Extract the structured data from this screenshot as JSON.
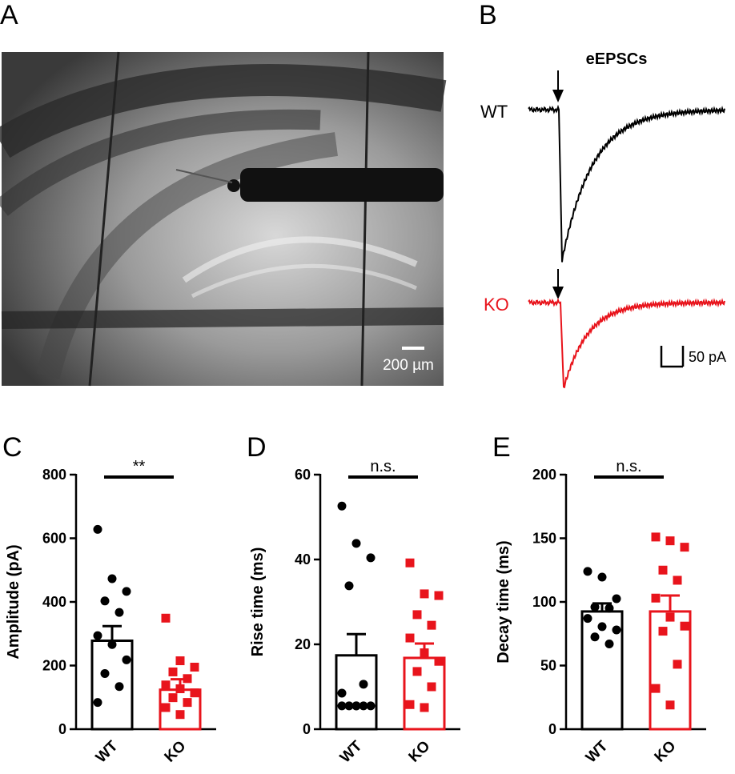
{
  "panel_a": {
    "label": "A",
    "scale_bar": "200 µm"
  },
  "panel_b": {
    "label": "B",
    "title": "eEPSCs",
    "traces": [
      "WT",
      "KO"
    ],
    "scale_bar": "50 pA"
  },
  "chart_data": [
    {
      "type": "bar",
      "panel_label": "C",
      "ylabel": "Amplitude (pA)",
      "annotation": "**",
      "categories": [
        "WT",
        "KO"
      ],
      "colors": [
        "#000000",
        "#e8141c"
      ],
      "values": [
        278,
        124
      ],
      "errors": [
        46,
        33
      ],
      "points": [
        [
          628,
          473,
          433,
          403,
          367,
          294,
          266,
          218,
          175,
          134,
          84
        ],
        [
          349,
          215,
          195,
          180,
          159,
          139,
          127,
          114,
          99,
          84,
          68,
          46
        ]
      ],
      "ylim": [
        0,
        800
      ],
      "yticks": [
        0,
        200,
        400,
        600,
        800
      ]
    },
    {
      "type": "bar",
      "panel_label": "D",
      "ylabel": "Rise time (ms)",
      "annotation": "n.s.",
      "categories": [
        "WT",
        "KO"
      ],
      "colors": [
        "#000000",
        "#e8141c"
      ],
      "values": [
        17.4,
        16.8
      ],
      "errors": [
        5,
        3.4
      ],
      "points": [
        [
          52.6,
          43.8,
          40.4,
          33.8,
          10.6,
          8.5,
          5.5,
          5.5,
          5.5,
          5.5,
          5.5,
          5.5
        ],
        [
          39.2,
          31.9,
          31.5,
          27,
          24.5,
          21.5,
          18,
          16,
          13.6,
          10,
          5.8,
          5.1
        ]
      ],
      "ylim": [
        0,
        60
      ],
      "yticks": [
        0,
        20,
        40,
        60
      ]
    },
    {
      "type": "bar",
      "panel_label": "E",
      "ylabel": "Decay time (ms)",
      "annotation": "n.s.",
      "categories": [
        "WT",
        "KO"
      ],
      "colors": [
        "#000000",
        "#e8141c"
      ],
      "values": [
        92.5,
        92.5
      ],
      "errors": [
        6.3,
        12.5
      ],
      "points": [
        [
          124,
          119.5,
          102.5,
          96,
          95,
          87,
          80.6,
          78,
          72.5,
          67
        ],
        [
          151,
          148,
          143,
          125,
          117,
          103,
          88,
          81,
          77,
          51,
          32,
          19
        ]
      ],
      "ylim": [
        0,
        200
      ],
      "yticks": [
        0,
        50,
        100,
        150,
        200
      ]
    }
  ]
}
